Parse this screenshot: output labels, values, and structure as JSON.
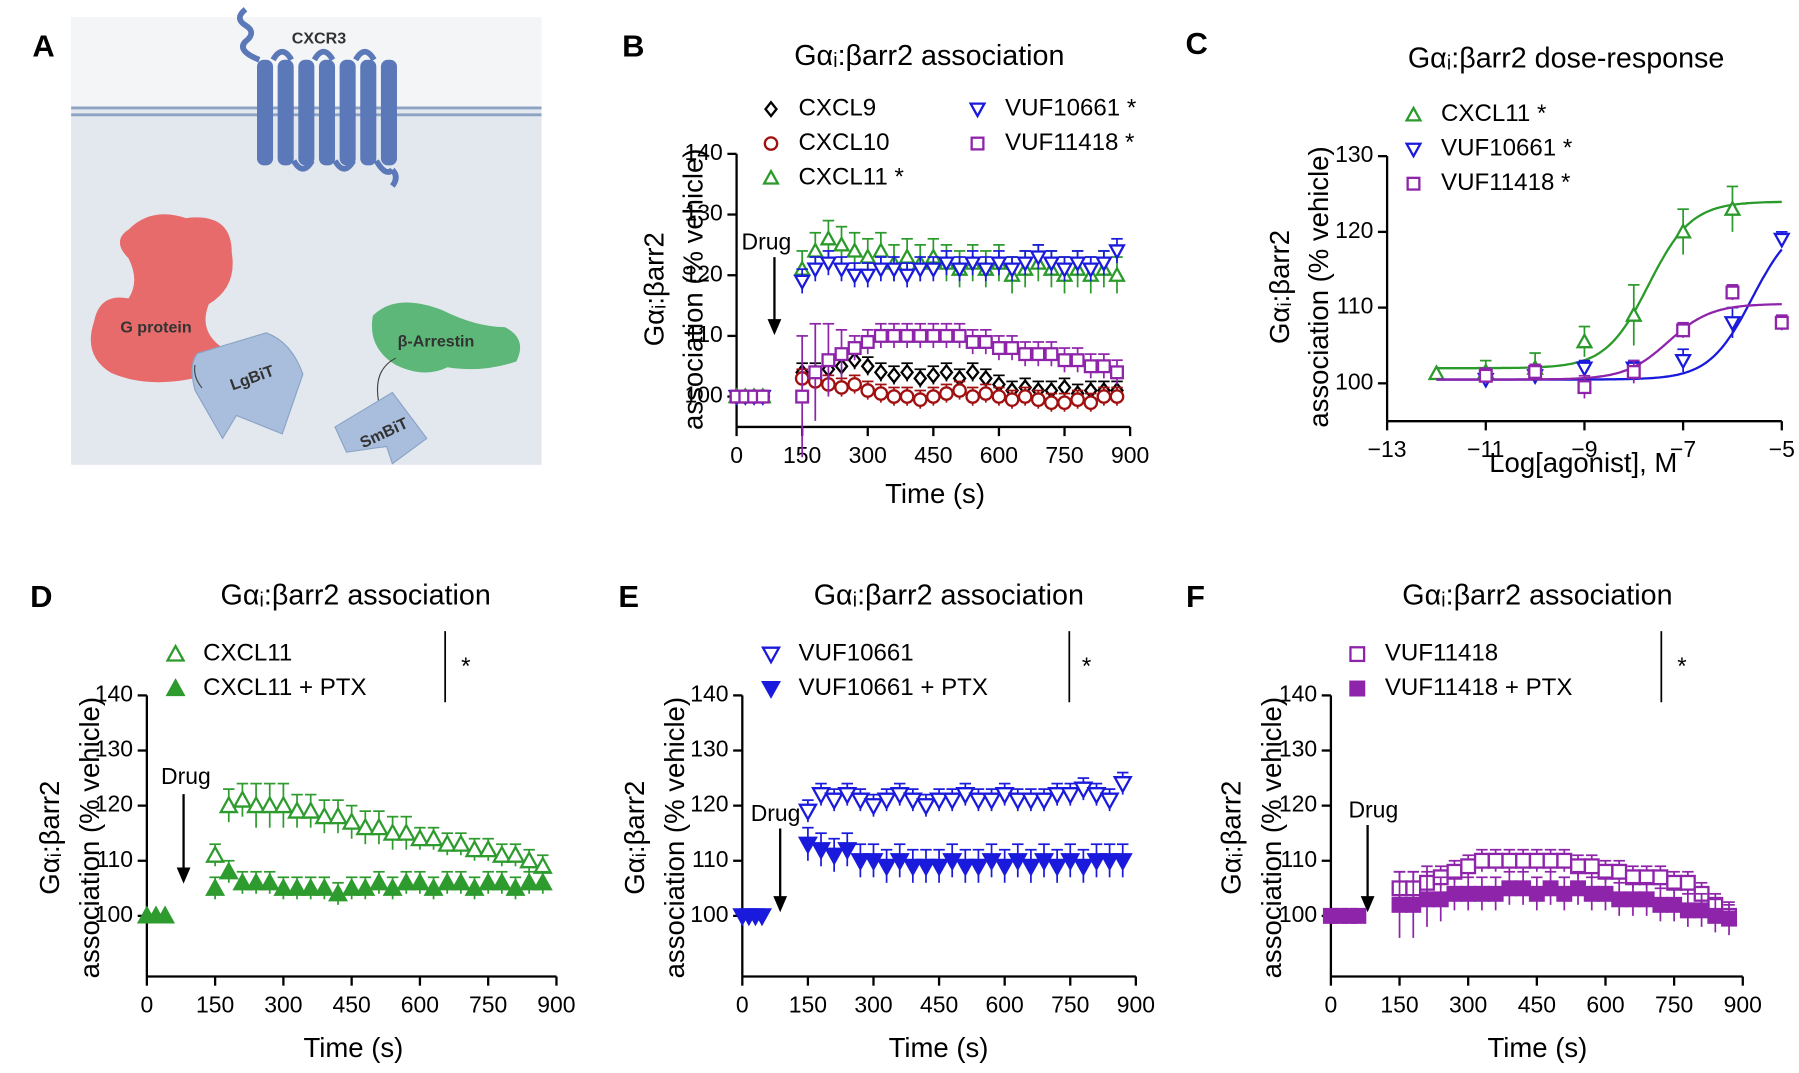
{
  "diagram": {
    "panel": "A",
    "labels": {
      "receptor": "CXCR3",
      "g_protein": "G protein",
      "lgbit": "LgBiT",
      "arrestin": "β-Arrestin",
      "smbit": "SmBiT"
    }
  },
  "chart_data": [
    {
      "type": "scatter",
      "panel": "B",
      "title": "Gαᵢ:βarr2 association",
      "x_label": "Time (s)",
      "y_label": [
        "Gαᵢ:βarr2",
        "association (% vehicle)"
      ],
      "drug_label": "Drug",
      "xlim": [
        0,
        900
      ],
      "xticks": [
        0,
        150,
        300,
        450,
        600,
        750,
        900
      ],
      "ylim": [
        95,
        140
      ],
      "yticks": [
        100,
        110,
        120,
        130,
        140
      ],
      "x": [
        0,
        20,
        40,
        60,
        150,
        180,
        210,
        240,
        270,
        300,
        330,
        360,
        390,
        420,
        450,
        480,
        510,
        540,
        570,
        600,
        630,
        660,
        690,
        720,
        750,
        780,
        810,
        840,
        870
      ],
      "series": [
        {
          "name": "CXCL9",
          "color": "#000000",
          "marker": "diamond",
          "filled": false,
          "values": [
            100,
            100,
            100,
            100,
            104,
            104,
            104.5,
            105,
            106,
            105,
            104,
            103.5,
            104,
            103,
            103.5,
            104,
            103,
            104,
            103,
            102,
            101,
            101.5,
            101,
            101,
            101.5,
            100.5,
            101,
            101,
            101
          ],
          "errors": [
            0,
            0,
            0,
            0,
            1.5,
            1.5,
            1.5,
            1.5,
            1.5,
            1.5,
            1.5,
            1.5,
            1.5,
            1.5,
            1.5,
            1.5,
            1.5,
            1.5,
            1.5,
            1.5,
            1.5,
            1.5,
            1.5,
            1.5,
            1.5,
            1.5,
            1.5,
            1.5,
            1.5
          ]
        },
        {
          "name": "CXCL10",
          "color": "#a01010",
          "marker": "circle",
          "filled": false,
          "values": [
            100,
            100,
            100,
            100,
            103,
            102.5,
            102,
            101.5,
            102,
            101,
            100.5,
            100,
            100,
            99.5,
            100,
            100.5,
            101,
            100,
            100.5,
            100,
            99.5,
            100,
            99.5,
            99,
            99,
            99.5,
            99,
            100,
            100
          ],
          "errors": [
            0,
            0,
            0,
            0,
            1.5,
            1.5,
            1.5,
            1.5,
            1.5,
            1.5,
            1.5,
            1.5,
            1.5,
            1.5,
            1.5,
            1.5,
            1.5,
            1.5,
            1.5,
            1.5,
            1.5,
            1.5,
            1.5,
            1.5,
            1.5,
            1.5,
            1.5,
            1.5,
            1.5
          ]
        },
        {
          "name": "CXCL11  *",
          "color": "#2a9a2a",
          "marker": "triangle",
          "filled": false,
          "values": [
            100,
            100,
            100,
            100,
            121,
            124,
            126,
            125,
            124,
            123,
            124,
            122,
            123,
            122,
            123,
            122,
            121,
            122,
            121,
            122,
            120,
            121,
            122,
            121,
            120,
            121,
            120,
            121,
            120
          ],
          "errors": [
            0,
            0,
            0,
            0,
            3,
            3,
            3,
            3,
            3,
            3,
            3,
            3,
            3,
            3,
            3,
            3,
            3,
            3,
            3,
            3,
            3,
            3,
            3,
            3,
            3,
            3,
            3,
            3,
            3
          ]
        },
        {
          "name": "VUF10661 *",
          "color": "#1a1adc",
          "marker": "triangle-down",
          "filled": false,
          "values": [
            100,
            100,
            100,
            100,
            119,
            121,
            122,
            121,
            120,
            120,
            121,
            121,
            120,
            121,
            121,
            122,
            121,
            122,
            121,
            122,
            121,
            122,
            123,
            122,
            121,
            122,
            121,
            122,
            124
          ],
          "errors": [
            0,
            0,
            0,
            0,
            2,
            2,
            2,
            2,
            2,
            2,
            2,
            2,
            2,
            2,
            2,
            2,
            2,
            2,
            2,
            2,
            2,
            2,
            2,
            2,
            2,
            2,
            2,
            2,
            2
          ]
        },
        {
          "name": "VUF11418 *",
          "color": "#8e24aa",
          "marker": "square",
          "filled": false,
          "values": [
            100,
            100,
            100,
            100,
            100,
            104,
            106,
            107,
            108,
            109,
            110,
            110,
            110,
            110,
            110,
            110,
            110,
            109,
            109,
            108,
            108,
            107,
            107,
            107,
            106,
            106,
            105,
            105,
            104
          ],
          "errors": [
            0,
            0,
            0,
            0,
            10,
            8,
            6,
            4,
            2,
            2,
            2,
            2,
            2,
            2,
            2,
            2,
            2,
            2,
            2,
            2,
            2,
            2,
            2,
            2,
            2,
            2,
            2,
            2,
            2
          ]
        }
      ]
    },
    {
      "type": "scatter",
      "panel": "C",
      "title": "Gαᵢ:βarr2 dose-response",
      "x_label": "Log[agonist], M",
      "y_label": [
        "Gαᵢ:βarr2",
        "association (% vehicle)"
      ],
      "xlim": [
        -13,
        -5
      ],
      "xticks": [
        {
          "value": -13,
          "label": "−13"
        },
        {
          "value": -11,
          "label": "−11"
        },
        {
          "value": -9,
          "label": "−9"
        },
        {
          "value": -7,
          "label": "−7"
        },
        {
          "value": -5,
          "label": "−5"
        }
      ],
      "ylim": [
        95,
        130
      ],
      "yticks": [
        100,
        110,
        120,
        130
      ],
      "series": [
        {
          "name": "CXCL11 *",
          "color": "#2a9a2a",
          "marker": "triangle",
          "filled": false,
          "x": [
            -12,
            -11,
            -10,
            -9,
            -8,
            -7,
            -6
          ],
          "values": [
            101.3,
            101.5,
            102,
            105.5,
            109,
            120,
            123
          ],
          "errors": [
            0,
            1.5,
            2,
            2,
            4,
            3,
            3
          ],
          "fit": {
            "bottom": 102,
            "top": 124,
            "logec50": -7.7,
            "hill": 1
          }
        },
        {
          "name": "VUF10661 *",
          "color": "#1a1adc",
          "marker": "triangle-down",
          "filled": false,
          "x": [
            -11,
            -10,
            -9,
            -8,
            -7,
            -6,
            -5
          ],
          "values": [
            100.5,
            101,
            102,
            102,
            103,
            108,
            119
          ],
          "errors": [
            1,
            1,
            1,
            1,
            1.5,
            2,
            1
          ],
          "fit": {
            "bottom": 100.5,
            "top": 122,
            "logec50": -5.6,
            "hill": 1
          }
        },
        {
          "name": "VUF11418 *",
          "color": "#8e24aa",
          "marker": "square",
          "filled": false,
          "x": [
            -11,
            -10,
            -9,
            -8,
            -7,
            -6,
            -5
          ],
          "values": [
            101,
            101.5,
            99.5,
            101.5,
            107,
            112,
            108
          ],
          "errors": [
            1,
            1,
            1.5,
            1.5,
            1,
            1,
            1
          ],
          "fit": {
            "bottom": 100.5,
            "top": 110.5,
            "logec50": -7.3,
            "hill": 1
          }
        }
      ]
    },
    {
      "type": "scatter",
      "panel": "D",
      "title": "Gαᵢ:βarr2 association",
      "x_label": "Time (s)",
      "y_label": [
        "Gαᵢ:βarr2",
        "association (% vehicle)"
      ],
      "drug_label": "Drug",
      "significance": "*",
      "xlim": [
        0,
        900
      ],
      "xticks": [
        0,
        150,
        300,
        450,
        600,
        750,
        900
      ],
      "ylim": [
        89,
        140
      ],
      "yticks": [
        100,
        110,
        120,
        130,
        140
      ],
      "x": [
        0,
        20,
        40,
        150,
        180,
        210,
        240,
        270,
        300,
        330,
        360,
        390,
        420,
        450,
        480,
        510,
        540,
        570,
        600,
        630,
        660,
        690,
        720,
        750,
        780,
        810,
        840,
        870
      ],
      "series": [
        {
          "name": "CXCL11",
          "color": "#2e9b2e",
          "marker": "triangle",
          "filled": false,
          "values": [
            null,
            null,
            null,
            111,
            120,
            121,
            120,
            120,
            120,
            119,
            119,
            118,
            118,
            117,
            116,
            116,
            115,
            115,
            114,
            114,
            113,
            113,
            112,
            112,
            111,
            111,
            110,
            109
          ],
          "errors": [
            null,
            null,
            null,
            2,
            3,
            3,
            4,
            4,
            4,
            3,
            3,
            3,
            3,
            3,
            3,
            3,
            3,
            3,
            2,
            2,
            2,
            2,
            2,
            2,
            2,
            2,
            2,
            2
          ]
        },
        {
          "name": "CXCL11 + PTX",
          "color": "#2e9b2e",
          "marker": "triangle",
          "filled": true,
          "values": [
            100,
            100,
            100,
            105,
            108,
            106,
            106,
            106,
            105,
            105,
            105,
            105,
            104,
            105,
            105,
            106,
            105,
            106,
            106,
            105,
            106,
            106,
            105,
            106,
            106,
            105,
            106,
            106
          ],
          "errors": [
            0,
            0,
            0,
            2,
            2,
            2,
            2,
            2,
            2,
            2,
            2,
            2,
            2,
            2,
            2,
            2,
            2,
            2,
            2,
            2,
            2,
            2,
            2,
            2,
            2,
            2,
            2,
            2
          ]
        }
      ]
    },
    {
      "type": "scatter",
      "panel": "E",
      "title": "Gαᵢ:βarr2 association",
      "x_label": "Time (s)",
      "y_label": [
        "Gαᵢ:βarr2",
        "association (% vehicle)"
      ],
      "drug_label": "Drug",
      "significance": "*",
      "xlim": [
        0,
        900
      ],
      "xticks": [
        0,
        150,
        300,
        450,
        600,
        750,
        900
      ],
      "ylim": [
        89,
        140
      ],
      "yticks": [
        100,
        110,
        120,
        130,
        140
      ],
      "x": [
        0,
        15,
        30,
        45,
        150,
        180,
        210,
        240,
        270,
        300,
        330,
        360,
        390,
        420,
        450,
        480,
        510,
        540,
        570,
        600,
        630,
        660,
        690,
        720,
        750,
        780,
        810,
        840,
        870
      ],
      "series": [
        {
          "name": "VUF10661",
          "color": "#1a1adc",
          "marker": "triangle-down",
          "filled": false,
          "values": [
            null,
            null,
            null,
            null,
            119,
            122,
            121,
            122,
            121,
            120,
            121,
            122,
            121,
            120,
            121,
            121,
            122,
            121,
            121,
            122,
            121,
            121,
            121,
            122,
            122,
            123,
            122,
            121,
            124
          ],
          "errors": [
            null,
            null,
            null,
            null,
            2,
            2,
            2,
            2,
            2,
            2,
            2,
            2,
            2,
            2,
            2,
            2,
            2,
            2,
            2,
            2,
            2,
            2,
            2,
            2,
            2,
            2,
            2,
            2,
            2
          ]
        },
        {
          "name": "VUF10661 + PTX",
          "color": "#1a1adc",
          "marker": "triangle-down",
          "filled": true,
          "values": [
            100,
            100,
            100,
            100,
            113,
            112,
            111,
            112,
            110,
            110,
            109,
            110,
            109,
            109,
            109,
            110,
            109,
            109,
            110,
            109,
            110,
            109,
            110,
            109,
            110,
            109,
            110,
            110,
            110
          ],
          "errors": [
            0,
            0,
            0,
            0,
            3,
            3,
            3,
            3,
            3,
            3,
            3,
            3,
            3,
            3,
            3,
            3,
            3,
            3,
            3,
            3,
            3,
            3,
            3,
            3,
            3,
            3,
            3,
            3,
            3
          ]
        }
      ]
    },
    {
      "type": "scatter",
      "panel": "F",
      "title": "Gαᵢ:βarr2 association",
      "x_label": "Time (s)",
      "y_label": [
        "Gαᵢ:βarr2",
        "association (% vehicle)"
      ],
      "drug_label": "Drug",
      "significance": "*",
      "xlim": [
        0,
        900
      ],
      "xticks": [
        0,
        150,
        300,
        450,
        600,
        750,
        900
      ],
      "ylim": [
        89,
        140
      ],
      "yticks": [
        100,
        110,
        120,
        130,
        140
      ],
      "x": [
        0,
        20,
        40,
        60,
        150,
        180,
        210,
        240,
        270,
        300,
        330,
        360,
        390,
        420,
        450,
        480,
        510,
        540,
        570,
        600,
        630,
        660,
        690,
        720,
        750,
        780,
        810,
        840,
        870
      ],
      "series": [
        {
          "name": "VUF11418",
          "color": "#8e24aa",
          "marker": "square",
          "filled": false,
          "values": [
            null,
            null,
            null,
            null,
            105,
            105,
            106,
            107,
            108,
            109,
            110,
            110,
            110,
            110,
            110,
            110,
            110,
            109,
            109,
            108,
            108,
            107,
            107,
            107,
            106,
            106,
            104,
            102,
            100
          ],
          "errors": [
            null,
            null,
            null,
            null,
            3,
            3,
            3,
            2,
            2,
            2,
            2,
            2,
            2,
            2,
            2,
            2,
            2,
            2,
            2,
            2,
            2,
            2,
            2,
            2,
            2,
            2,
            2,
            2,
            2
          ]
        },
        {
          "name": "VUF11418 + PTX",
          "color": "#8e24aa",
          "marker": "square",
          "filled": true,
          "values": [
            100,
            100,
            100,
            100,
            102,
            102,
            103,
            103,
            104,
            104,
            104,
            104,
            105,
            105,
            104,
            105,
            104,
            105,
            104,
            104,
            103,
            103,
            103,
            102,
            102,
            101,
            101,
            100,
            99.5
          ],
          "errors": [
            0,
            0,
            0,
            0,
            6,
            6,
            5,
            4,
            3,
            3,
            3,
            3,
            3,
            3,
            3,
            3,
            3,
            3,
            3,
            3,
            3,
            3,
            3,
            3,
            3,
            3,
            3,
            3,
            3
          ]
        }
      ]
    }
  ]
}
